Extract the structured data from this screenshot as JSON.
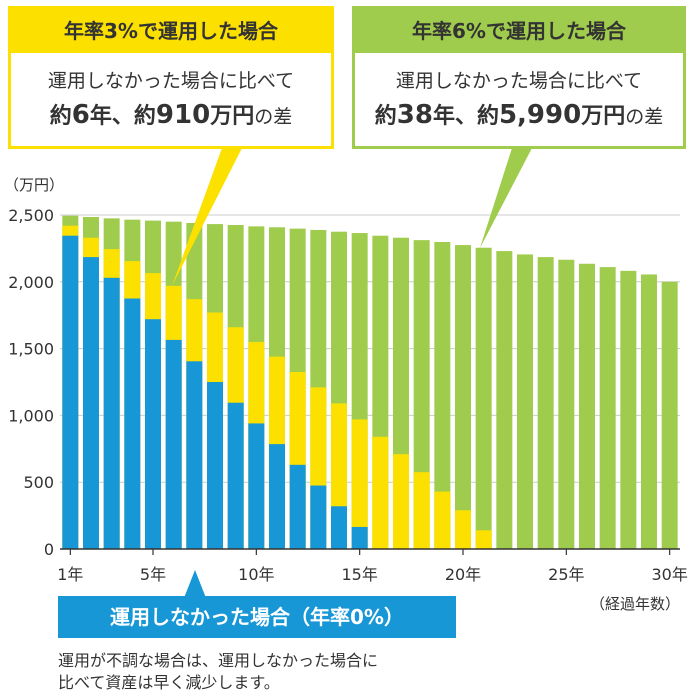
{
  "callout_3": {
    "title": "年率3%で運用した場合",
    "line1": "運用しなかった場合に比べて",
    "pre1": "約",
    "years": "6",
    "mid1": "年、約",
    "amount": "910",
    "suf1": "万円",
    "tail": "の差",
    "color": "#fbe000"
  },
  "callout_6": {
    "title": "年率6%で運用した場合",
    "line1": "運用しなかった場合に比べて",
    "pre1": "約",
    "years": "38",
    "mid1": "年、約",
    "amount": "5,990",
    "suf1": "万円",
    "tail": "の差",
    "color": "#a0cc4d"
  },
  "callout_0": {
    "title": "運用しなかった場合（年率0%）",
    "note_line1": "運用が不調な場合は、運用しなかった場合に",
    "note_line2": "比べて資産は早く減少します。",
    "color": "#1797d6"
  },
  "chart_data": {
    "type": "bar",
    "ylabel": "（万円）",
    "xlabel": "（経過年数）",
    "ylim": [
      0,
      2500
    ],
    "yticks": [
      "0",
      "500",
      "1,000",
      "1,500",
      "2,000",
      "2,500"
    ],
    "ytick_values": [
      0,
      500,
      1000,
      1500,
      2000,
      2500
    ],
    "xticks": [
      {
        "year": 1,
        "label": "1年"
      },
      {
        "year": 5,
        "label": "5年"
      },
      {
        "year": 10,
        "label": "10年"
      },
      {
        "year": 15,
        "label": "15年"
      },
      {
        "year": 20,
        "label": "20年"
      },
      {
        "year": 25,
        "label": "25年"
      },
      {
        "year": 30,
        "label": "30年"
      }
    ],
    "grid": true,
    "overlapping": true,
    "years": [
      1,
      2,
      3,
      4,
      5,
      6,
      7,
      8,
      9,
      10,
      11,
      12,
      13,
      14,
      15,
      16,
      17,
      18,
      19,
      20,
      21,
      22,
      23,
      24,
      25,
      26,
      27,
      28,
      29,
      30
    ],
    "series": [
      {
        "color": "#a0cc4d",
        "values": [
          2495,
          2485,
          2475,
          2465,
          2458,
          2450,
          2440,
          2432,
          2425,
          2415,
          2408,
          2398,
          2388,
          2375,
          2365,
          2345,
          2330,
          2312,
          2298,
          2275,
          2255,
          2230,
          2205,
          2185,
          2165,
          2135,
          2110,
          2082,
          2055,
          2000
        ]
      },
      {
        "color": "#fbe000",
        "values": [
          2420,
          2330,
          2245,
          2155,
          2065,
          1970,
          1870,
          1770,
          1660,
          1550,
          1440,
          1325,
          1210,
          1090,
          970,
          840,
          710,
          575,
          430,
          290,
          140,
          0,
          0,
          0,
          0,
          0,
          0,
          0,
          0,
          0
        ]
      },
      {
        "color": "#1797d6",
        "values": [
          2345,
          2185,
          2030,
          1875,
          1720,
          1565,
          1405,
          1250,
          1095,
          940,
          785,
          630,
          475,
          320,
          165,
          0,
          0,
          0,
          0,
          0,
          0,
          0,
          0,
          0,
          0,
          0,
          0,
          0,
          0,
          0
        ]
      }
    ]
  }
}
